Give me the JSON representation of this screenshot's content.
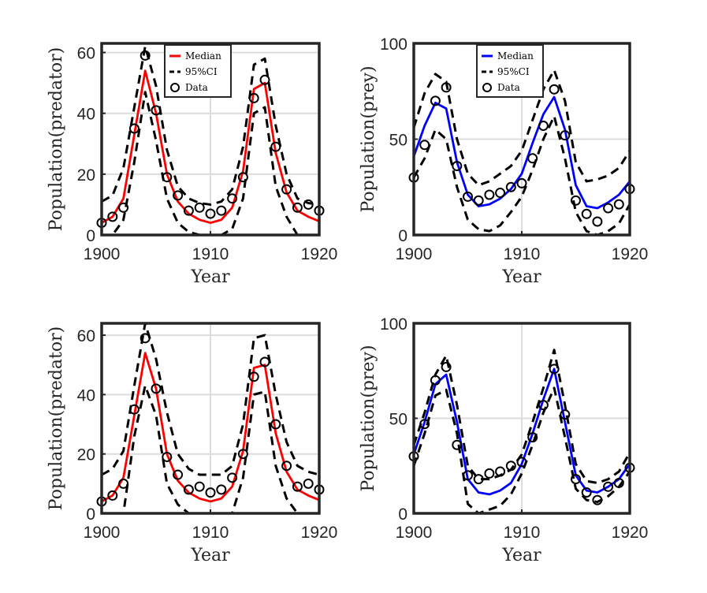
{
  "figure": {
    "background": "#ffffff",
    "data_marker": "circle"
  },
  "chart_data": [
    {
      "type": "line",
      "panel": "top-left",
      "xlabel": "Year",
      "ylabel": "Population(predator)",
      "xlim": [
        1900,
        1920
      ],
      "ylim": [
        0,
        63
      ],
      "xticks": [
        1900,
        1910,
        1920
      ],
      "yticks": [
        0,
        20,
        40,
        60
      ],
      "grid": true,
      "color": "#ff0000",
      "legend": {
        "show": true,
        "placement": "top-center",
        "entries": [
          "Median",
          "95%CI",
          "Data"
        ]
      },
      "x": [
        1900,
        1901,
        1902,
        1903,
        1904,
        1905,
        1906,
        1907,
        1908,
        1909,
        1910,
        1911,
        1912,
        1913,
        1914,
        1915,
        1916,
        1917,
        1918,
        1919,
        1920
      ],
      "series": [
        {
          "name": "Median",
          "values": [
            4,
            6,
            12,
            33,
            54,
            40,
            20,
            11,
            7,
            5,
            4,
            5,
            9,
            21,
            48,
            50,
            27,
            14,
            8,
            6,
            4.5
          ]
        },
        {
          "name": "95%CI upper",
          "values": [
            11,
            13,
            22,
            42,
            62,
            49,
            28,
            16,
            12,
            10.5,
            10,
            11,
            15,
            29,
            56,
            58,
            36,
            20,
            12,
            10.5,
            10
          ]
        },
        {
          "name": "95%CI lower",
          "values": [
            0,
            0,
            5,
            24,
            47,
            31,
            12,
            4,
            1,
            0,
            0,
            0,
            2,
            12,
            40,
            42,
            16,
            6,
            0,
            0,
            0
          ]
        },
        {
          "name": "Data",
          "values": [
            4,
            6,
            9,
            35,
            59,
            41,
            19,
            13,
            8,
            9,
            7,
            8,
            12,
            19,
            45,
            51,
            29,
            15,
            9,
            10,
            8
          ]
        }
      ]
    },
    {
      "type": "line",
      "panel": "top-right",
      "xlabel": "Year",
      "ylabel": "Population(prey)",
      "xlim": [
        1900,
        1920
      ],
      "ylim": [
        0,
        100
      ],
      "xticks": [
        1900,
        1910,
        1920
      ],
      "yticks": [
        0,
        50,
        100
      ],
      "grid": true,
      "color": "#0000ff",
      "legend": {
        "show": true,
        "placement": "top-center",
        "entries": [
          "Median",
          "95%CI",
          "Data"
        ]
      },
      "x": [
        1900,
        1901,
        1902,
        1903,
        1904,
        1905,
        1906,
        1907,
        1908,
        1909,
        1910,
        1911,
        1912,
        1913,
        1914,
        1915,
        1916,
        1917,
        1918,
        1919,
        1920
      ],
      "series": [
        {
          "name": "Median",
          "values": [
            41,
            57,
            69,
            66,
            38,
            21,
            15,
            16,
            19,
            24,
            32,
            48,
            63,
            72,
            55,
            26,
            15,
            14,
            17,
            21,
            28
          ]
        },
        {
          "name": "95%CI upper",
          "values": [
            56,
            74,
            84,
            80,
            50,
            32,
            26,
            28,
            32,
            36,
            44,
            60,
            76,
            86,
            70,
            38,
            28,
            29,
            31,
            35,
            44
          ]
        },
        {
          "name": "95%CI lower",
          "values": [
            30,
            40,
            55,
            50,
            25,
            8,
            3,
            2,
            5,
            12,
            20,
            34,
            50,
            62,
            40,
            12,
            2,
            0,
            2,
            6,
            16
          ]
        },
        {
          "name": "Data",
          "values": [
            30,
            47,
            70,
            77,
            36,
            20,
            18,
            21,
            22,
            25,
            27,
            40,
            57,
            76,
            52,
            18,
            11,
            7,
            14,
            16,
            24
          ]
        }
      ]
    },
    {
      "type": "line",
      "panel": "bottom-left",
      "xlabel": "Year",
      "ylabel": "Population(predator)",
      "xlim": [
        1900,
        1920
      ],
      "ylim": [
        0,
        64
      ],
      "xticks": [
        1900,
        1910,
        1920
      ],
      "yticks": [
        0,
        20,
        40,
        60
      ],
      "grid": true,
      "color": "#ff0000",
      "legend": {
        "show": false
      },
      "x": [
        1900,
        1901,
        1902,
        1903,
        1904,
        1905,
        1906,
        1907,
        1908,
        1909,
        1910,
        1911,
        1912,
        1913,
        1914,
        1915,
        1916,
        1917,
        1918,
        1919,
        1920
      ],
      "series": [
        {
          "name": "Median",
          "values": [
            4,
            6,
            12,
            33,
            54,
            42,
            20,
            11,
            7,
            5,
            4,
            5,
            9,
            21,
            49,
            50,
            27,
            14,
            8,
            6,
            4.5
          ]
        },
        {
          "name": "95%CI upper",
          "values": [
            13,
            15,
            21,
            43,
            66,
            52,
            34,
            20,
            15,
            13,
            13,
            13,
            16,
            30,
            59,
            60,
            40,
            24,
            16,
            14,
            13
          ]
        },
        {
          "name": "95%CI lower",
          "values": [
            0,
            0,
            0,
            26,
            43,
            33,
            10,
            3,
            0,
            0,
            0,
            0,
            0,
            12,
            40,
            41,
            16,
            5,
            0,
            0,
            0
          ]
        },
        {
          "name": "Data",
          "values": [
            4,
            6,
            10,
            35,
            59,
            42,
            19,
            13,
            8,
            9,
            7,
            8,
            12,
            20,
            46,
            51,
            30,
            16,
            9,
            10,
            8
          ]
        }
      ]
    },
    {
      "type": "line",
      "panel": "bottom-right",
      "xlabel": "Year",
      "ylabel": "Population(prey)",
      "xlim": [
        1900,
        1920
      ],
      "ylim": [
        0,
        100
      ],
      "xticks": [
        1900,
        1910,
        1920
      ],
      "yticks": [
        0,
        50,
        100
      ],
      "grid": true,
      "color": "#0000ff",
      "legend": {
        "show": false
      },
      "x": [
        1900,
        1901,
        1902,
        1903,
        1904,
        1905,
        1906,
        1907,
        1908,
        1909,
        1910,
        1911,
        1912,
        1913,
        1914,
        1915,
        1916,
        1917,
        1918,
        1919,
        1920
      ],
      "series": [
        {
          "name": "Median",
          "values": [
            31,
            48,
            68,
            73,
            48,
            18,
            11,
            10,
            12,
            16,
            26,
            42,
            60,
            76,
            48,
            20,
            12,
            11,
            14,
            18,
            26
          ]
        },
        {
          "name": "95%CI upper",
          "values": [
            36,
            53,
            73,
            83,
            57,
            25,
            18,
            18,
            20,
            23,
            31,
            48,
            66,
            86,
            57,
            26,
            17,
            16,
            18,
            22,
            32
          ]
        },
        {
          "name": "95%CI lower",
          "values": [
            25,
            42,
            62,
            65,
            42,
            5,
            0,
            2,
            4,
            10,
            21,
            36,
            53,
            66,
            40,
            13,
            7,
            6,
            9,
            14,
            22
          ]
        },
        {
          "name": "Data",
          "values": [
            30,
            47,
            70,
            77,
            36,
            20,
            18,
            21,
            22,
            25,
            27,
            40,
            57,
            76,
            52,
            18,
            11,
            7,
            14,
            16,
            24
          ]
        }
      ]
    }
  ]
}
